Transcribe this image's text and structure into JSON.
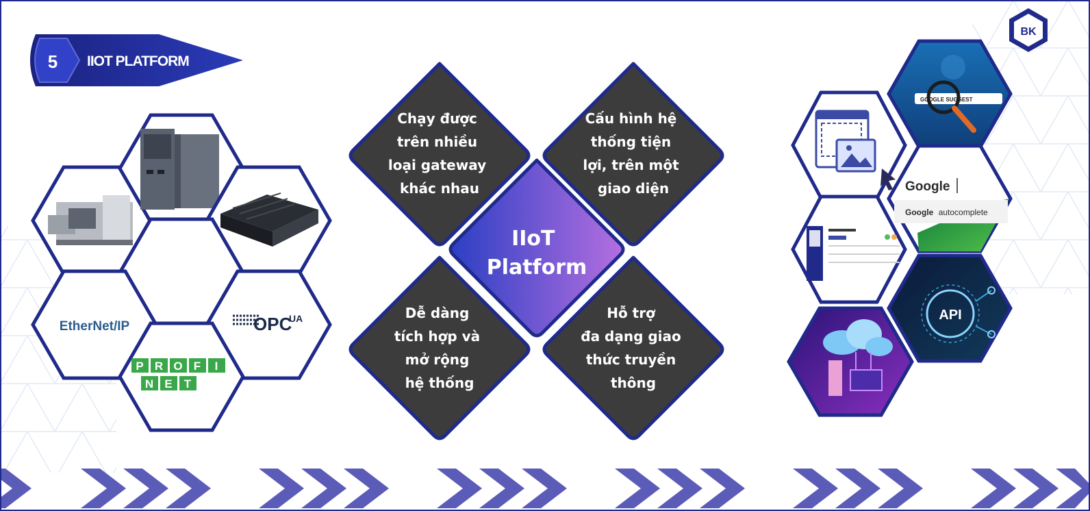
{
  "section": {
    "number": "5",
    "title": "IIOT PLATFORM"
  },
  "logo": {
    "text": "BK"
  },
  "center": {
    "line1": "IIoT",
    "line2": "Platform"
  },
  "features": [
    {
      "lines": [
        "Chạy được",
        "trên nhiều",
        "loại gateway",
        "khác nhau"
      ]
    },
    {
      "lines": [
        "Cấu hình hệ",
        "thống tiện",
        "lợi, trên một",
        "giao diện"
      ]
    },
    {
      "lines": [
        "Dễ dàng",
        "tích hợp và",
        "mở rộng",
        "hệ thống"
      ]
    },
    {
      "lines": [
        "Hỗ trợ",
        "đa dạng giao",
        "thức truyền",
        "thông"
      ]
    }
  ],
  "protocols": {
    "ethernet_ip": "EtherNet/IP",
    "opc_main": "OPC",
    "opc_sup": "UA",
    "profinet": [
      "P",
      "R",
      "O",
      "F",
      "I",
      "N",
      "E",
      "T"
    ]
  },
  "web_tiles": {
    "search_text": "GOOGLE SUGGEST",
    "google_word": "Google",
    "google_autocomplete_prefix": "Google",
    "google_autocomplete_suffix": "autocomplete",
    "api": "API"
  },
  "colors": {
    "navy": "#1f2a8a",
    "dark_hex": "#3c3c3c",
    "center_a": "#2b3fc4",
    "center_b": "#b46fe0",
    "chevron": "#5b5bb8"
  }
}
